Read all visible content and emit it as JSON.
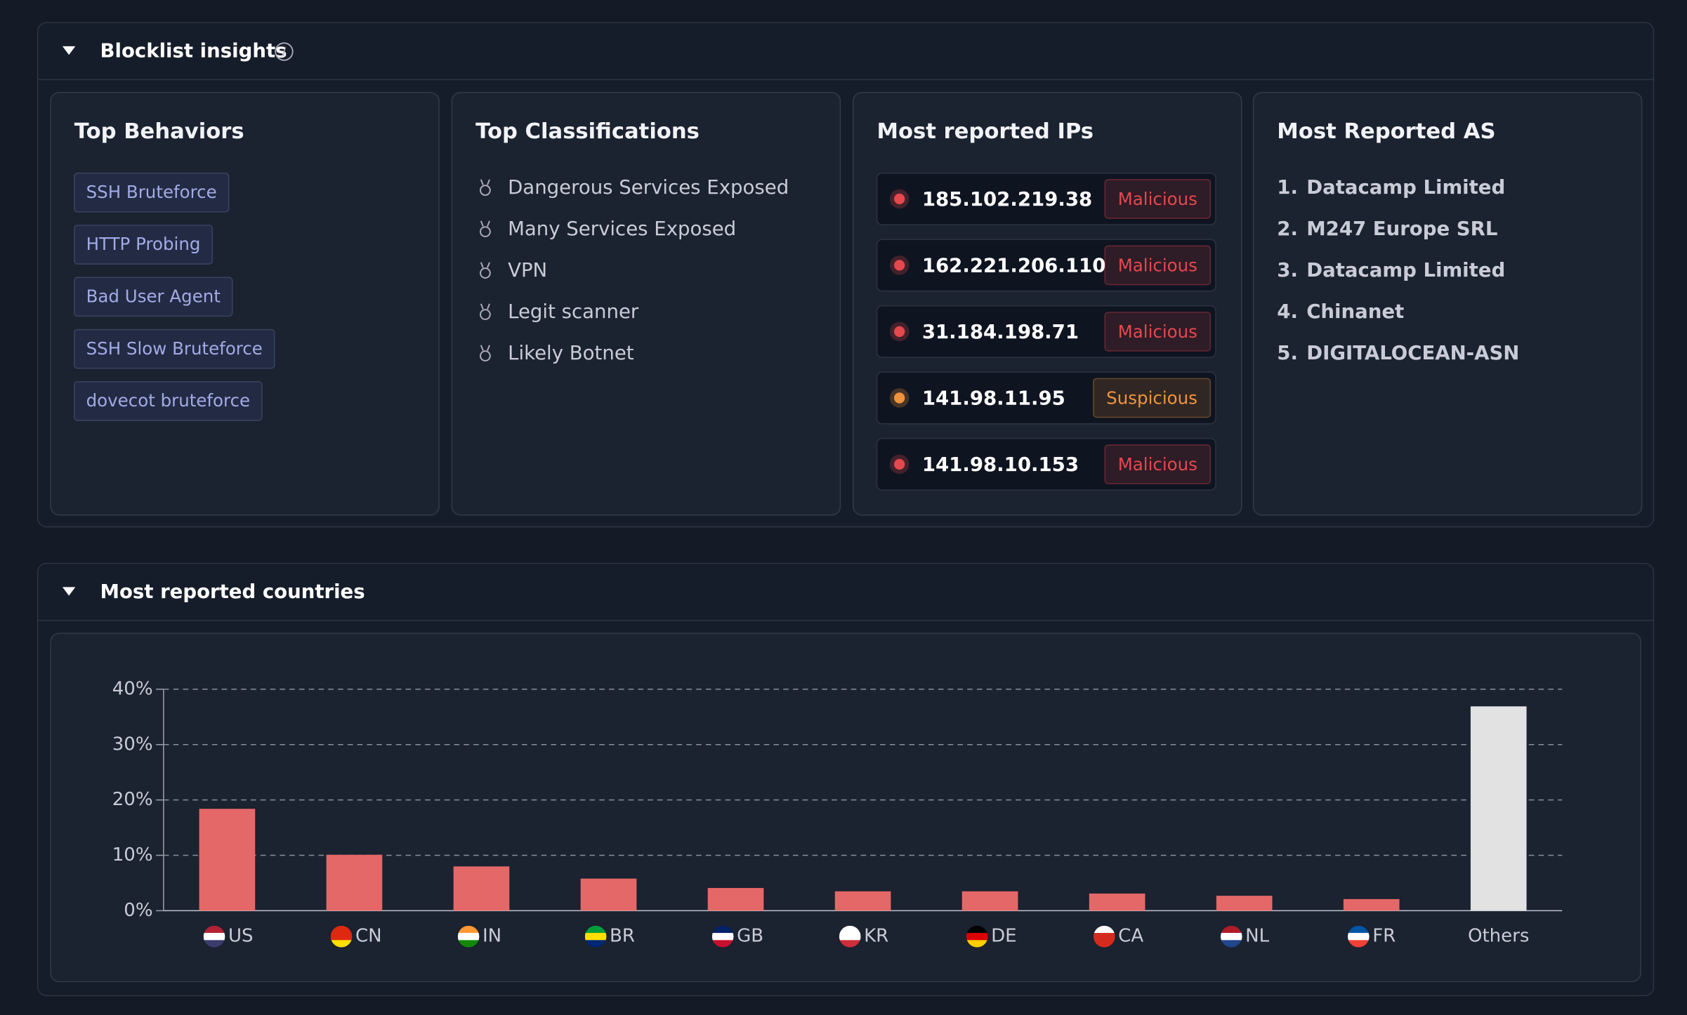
{
  "insights": {
    "title": "Blocklist insights",
    "top_behaviors": {
      "title": "Top Behaviors",
      "items": [
        "SSH Bruteforce",
        "HTTP Probing",
        "Bad User Agent",
        "SSH Slow Bruteforce",
        "dovecot bruteforce"
      ]
    },
    "top_classifications": {
      "title": "Top Classifications",
      "items": [
        "Dangerous Services Exposed",
        "Many Services Exposed",
        "VPN",
        "Legit scanner",
        "Likely Botnet"
      ]
    },
    "most_reported_ips": {
      "title": "Most reported IPs",
      "items": [
        {
          "ip": "185.102.219.38",
          "status": "Malicious",
          "color": "#e5484d"
        },
        {
          "ip": "162.221.206.110",
          "status": "Malicious",
          "color": "#e5484d"
        },
        {
          "ip": "31.184.198.71",
          "status": "Malicious",
          "color": "#e5484d"
        },
        {
          "ip": "141.98.11.95",
          "status": "Suspicious",
          "color": "#f0943c"
        },
        {
          "ip": "141.98.10.153",
          "status": "Malicious",
          "color": "#e5484d"
        }
      ]
    },
    "most_reported_as": {
      "title": "Most Reported AS",
      "items": [
        {
          "rank": "1.",
          "name": "Datacamp Limited"
        },
        {
          "rank": "2.",
          "name": "M247 Europe SRL"
        },
        {
          "rank": "3.",
          "name": "Datacamp Limited"
        },
        {
          "rank": "4.",
          "name": "Chinanet"
        },
        {
          "rank": "5.",
          "name": "DIGITALOCEAN-ASN"
        }
      ]
    }
  },
  "countries": {
    "title": "Most reported countries"
  },
  "chart_data": {
    "type": "bar",
    "categories": [
      "US",
      "CN",
      "IN",
      "BR",
      "GB",
      "KR",
      "DE",
      "CA",
      "NL",
      "FR",
      "Others"
    ],
    "values": [
      18.4,
      10.1,
      8.0,
      5.8,
      4.1,
      3.5,
      3.5,
      3.1,
      2.7,
      2.1,
      36.9
    ],
    "colors": [
      "#e56868",
      "#e56868",
      "#e56868",
      "#e56868",
      "#e56868",
      "#e56868",
      "#e56868",
      "#e56868",
      "#e56868",
      "#e56868",
      "#e2e2e2"
    ],
    "ylim": [
      0,
      40
    ],
    "yticks": [
      {
        "value": 0,
        "label": "0%"
      },
      {
        "value": 10,
        "label": "10%"
      },
      {
        "value": 20,
        "label": "20%"
      },
      {
        "value": 30,
        "label": "30%"
      },
      {
        "value": 40,
        "label": "40%"
      }
    ],
    "grid": true
  }
}
